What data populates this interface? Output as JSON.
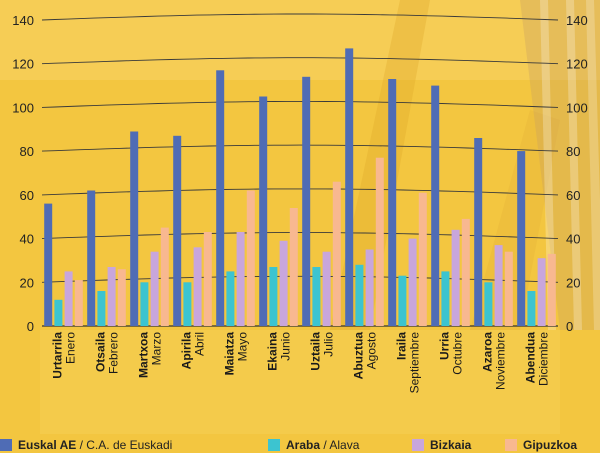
{
  "chart_data": {
    "type": "bar",
    "categories": [
      {
        "eu": "Urtarrila",
        "es": "Enero"
      },
      {
        "eu": "Otsaila",
        "es": "Febrero"
      },
      {
        "eu": "Martxoa",
        "es": "Marzo"
      },
      {
        "eu": "Apirila",
        "es": "Abril"
      },
      {
        "eu": "Maiatza",
        "es": "Mayo"
      },
      {
        "eu": "Ekaina",
        "es": "Junio"
      },
      {
        "eu": "Uztaila",
        "es": "Julio"
      },
      {
        "eu": "Abuztua",
        "es": "Agosto"
      },
      {
        "eu": "Iraila",
        "es": "Septiembre"
      },
      {
        "eu": "Urria",
        "es": "Octubre"
      },
      {
        "eu": "Azaroa",
        "es": "Noviembre"
      },
      {
        "eu": "Abendua",
        "es": "Diciembre"
      }
    ],
    "series": [
      {
        "name": "Euskal AE",
        "name_es": "C.A. de Euskadi",
        "color": "#4f6cb5",
        "values": [
          56,
          62,
          89,
          87,
          117,
          105,
          114,
          127,
          113,
          110,
          86,
          80
        ]
      },
      {
        "name": "Araba",
        "name_es": "Alava",
        "color": "#3cc4d0",
        "values": [
          12,
          16,
          20,
          20,
          25,
          27,
          27,
          28,
          23,
          25,
          20,
          16
        ]
      },
      {
        "name": "Bizkaia",
        "name_es": "",
        "color": "#c8a6dc",
        "values": [
          25,
          27,
          34,
          36,
          43,
          39,
          34,
          35,
          40,
          44,
          37,
          31
        ]
      },
      {
        "name": "Gipuzkoa",
        "name_es": "",
        "color": "#f8b890",
        "values": [
          21,
          26,
          45,
          43,
          62,
          54,
          66,
          77,
          61,
          49,
          34,
          33
        ]
      }
    ],
    "yticks": [
      0,
      20,
      40,
      60,
      80,
      100,
      120,
      140
    ],
    "ylim": [
      0,
      140
    ],
    "title": "",
    "xlabel": "",
    "ylabel": "",
    "grid": true,
    "legend": "bottom"
  }
}
